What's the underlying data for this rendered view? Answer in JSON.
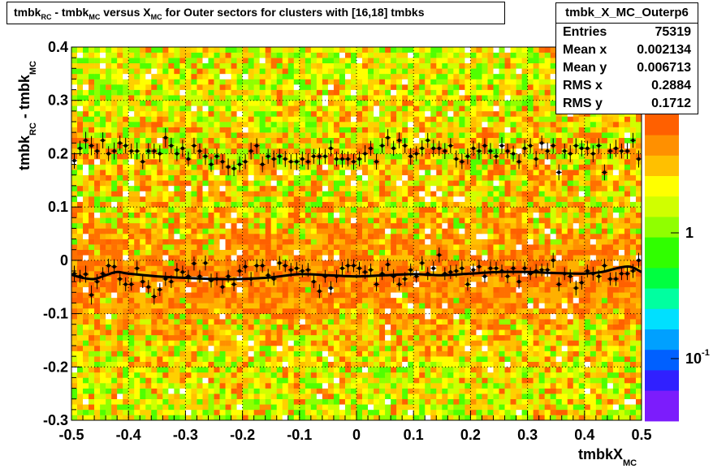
{
  "title": {
    "parts": [
      "tmbk",
      "RC",
      " - tmbk",
      "MC",
      " versus X",
      "MC",
      " for Outer sectors for clusters with [16,18] tmbks"
    ]
  },
  "stats": {
    "name": "tmbk_X_MC_Outerp6",
    "rows": [
      {
        "label": "Entries",
        "value": "75319"
      },
      {
        "label": "Mean x",
        "value": "0.002134"
      },
      {
        "label": "Mean y",
        "value": "0.006713"
      },
      {
        "label": "RMS x",
        "value": "0.2884"
      },
      {
        "label": "RMS y",
        "value": "0.1712"
      }
    ]
  },
  "chart_data": {
    "type": "heatmap",
    "xlabel": "tmbkX",
    "xlabel_sub": "MC",
    "ylabel_parts": [
      "tmbk",
      "RC",
      " - tmbk",
      "MC"
    ],
    "xlim": [
      -0.5,
      0.5
    ],
    "ylim": [
      -0.3,
      0.4
    ],
    "x_ticks": [
      "-0.5",
      "-0.4",
      "-0.3",
      "-0.2",
      "-0.1",
      "0",
      "0.1",
      "0.2",
      "0.3",
      "0.4",
      "0.5"
    ],
    "y_ticks": [
      "-0.3",
      "-0.2",
      "-0.1",
      "0",
      "0.1",
      "0.2",
      "0.3",
      "0.4"
    ],
    "z_scale": "log",
    "z_tick_labels": [
      {
        "base": "1",
        "exp": ""
      },
      {
        "base": "10",
        "exp": "-1"
      }
    ],
    "grid": true,
    "palette": [
      "#7c1cfc",
      "#3020ff",
      "#0060ff",
      "#00a0ff",
      "#00e0ff",
      "#00ffa0",
      "#00ff40",
      "#30ff00",
      "#90ff00",
      "#d0ff00",
      "#ffff00",
      "#ffc000",
      "#ff9000",
      "#ff6000"
    ],
    "profile_lower": {
      "x": [
        -0.495,
        -0.485,
        -0.475,
        -0.465,
        -0.455,
        -0.445,
        -0.435,
        -0.425,
        -0.415,
        -0.405,
        -0.395,
        -0.385,
        -0.375,
        -0.365,
        -0.355,
        -0.345,
        -0.335,
        -0.325,
        -0.315,
        -0.305,
        -0.295,
        -0.285,
        -0.275,
        -0.265,
        -0.255,
        -0.245,
        -0.235,
        -0.225,
        -0.215,
        -0.205,
        -0.195,
        -0.185,
        -0.175,
        -0.165,
        -0.155,
        -0.145,
        -0.135,
        -0.125,
        -0.115,
        -0.105,
        -0.095,
        -0.085,
        -0.075,
        -0.065,
        -0.055,
        -0.045,
        -0.035,
        -0.025,
        -0.015,
        -0.005,
        0.005,
        0.015,
        0.025,
        0.035,
        0.045,
        0.055,
        0.065,
        0.075,
        0.085,
        0.095,
        0.105,
        0.115,
        0.125,
        0.135,
        0.145,
        0.155,
        0.165,
        0.175,
        0.185,
        0.195,
        0.205,
        0.215,
        0.225,
        0.235,
        0.245,
        0.255,
        0.265,
        0.275,
        0.285,
        0.295,
        0.305,
        0.315,
        0.325,
        0.335,
        0.345,
        0.355,
        0.365,
        0.375,
        0.385,
        0.395,
        0.405,
        0.415,
        0.425,
        0.435,
        0.445,
        0.455,
        0.465,
        0.475,
        0.485,
        0.495
      ],
      "y": [
        -0.025,
        -0.03,
        -0.026,
        -0.065,
        -0.04,
        -0.025,
        -0.01,
        -0.012,
        -0.035,
        -0.045,
        -0.045,
        -0.015,
        -0.04,
        -0.05,
        -0.068,
        -0.055,
        -0.035,
        -0.04,
        -0.018,
        -0.022,
        -0.03,
        -0.006,
        -0.03,
        -0.005,
        -0.038,
        -0.035,
        -0.05,
        -0.03,
        -0.045,
        -0.02,
        -0.012,
        -0.035,
        -0.01,
        -0.01,
        -0.028,
        -0.035,
        -0.005,
        -0.01,
        -0.018,
        -0.015,
        -0.02,
        -0.018,
        -0.04,
        -0.058,
        -0.03,
        -0.052,
        -0.03,
        -0.015,
        -0.01,
        -0.01,
        -0.015,
        -0.022,
        -0.018,
        -0.045,
        -0.025,
        -0.008,
        -0.03,
        -0.045,
        -0.035,
        -0.018,
        -0.03,
        -0.005,
        -0.025,
        -0.015,
        0.01,
        -0.025,
        -0.022,
        -0.02,
        -0.015,
        -0.045,
        -0.018,
        -0.012,
        -0.03,
        -0.015,
        -0.015,
        -0.02,
        -0.03,
        -0.015,
        -0.04,
        -0.015,
        -0.025,
        -0.02,
        -0.018,
        -0.018,
        0.0,
        -0.045,
        -0.025,
        -0.03,
        -0.052,
        -0.042,
        -0.02,
        -0.025,
        -0.03,
        -0.01,
        -0.035,
        -0.035,
        -0.025,
        -0.025,
        -0.02,
        0.0
      ],
      "err": [
        0.015,
        0.012,
        0.016,
        0.018,
        0.014,
        0.012,
        0.013,
        0.014,
        0.012,
        0.013,
        0.012,
        0.013,
        0.012,
        0.013,
        0.015,
        0.012,
        0.013,
        0.012,
        0.013,
        0.012,
        0.012,
        0.013,
        0.012,
        0.014,
        0.013,
        0.012,
        0.013,
        0.012,
        0.013,
        0.012,
        0.012,
        0.013,
        0.012,
        0.013,
        0.012,
        0.012,
        0.013,
        0.012,
        0.013,
        0.012,
        0.012,
        0.013,
        0.012,
        0.013,
        0.012,
        0.013,
        0.012,
        0.012,
        0.013,
        0.012,
        0.012,
        0.013,
        0.012,
        0.013,
        0.012,
        0.012,
        0.013,
        0.012,
        0.013,
        0.012,
        0.012,
        0.013,
        0.012,
        0.013,
        0.014,
        0.012,
        0.013,
        0.012,
        0.013,
        0.012,
        0.012,
        0.013,
        0.012,
        0.013,
        0.012,
        0.012,
        0.013,
        0.012,
        0.013,
        0.012,
        0.012,
        0.013,
        0.012,
        0.013,
        0.014,
        0.013,
        0.012,
        0.013,
        0.014,
        0.013,
        0.012,
        0.013,
        0.012,
        0.013,
        0.012,
        0.013,
        0.012,
        0.012,
        0.013,
        0.014
      ]
    },
    "profile_upper": {
      "x": [
        -0.495,
        -0.485,
        -0.475,
        -0.465,
        -0.455,
        -0.445,
        -0.435,
        -0.425,
        -0.415,
        -0.405,
        -0.395,
        -0.385,
        -0.375,
        -0.365,
        -0.355,
        -0.345,
        -0.335,
        -0.325,
        -0.315,
        -0.305,
        -0.295,
        -0.285,
        -0.275,
        -0.265,
        -0.255,
        -0.245,
        -0.235,
        -0.225,
        -0.215,
        -0.205,
        -0.195,
        -0.185,
        -0.175,
        -0.165,
        -0.155,
        -0.145,
        -0.135,
        -0.125,
        -0.115,
        -0.105,
        -0.095,
        -0.085,
        -0.075,
        -0.065,
        -0.055,
        -0.045,
        -0.035,
        -0.025,
        -0.015,
        -0.005,
        0.005,
        0.015,
        0.025,
        0.035,
        0.045,
        0.055,
        0.065,
        0.075,
        0.085,
        0.095,
        0.105,
        0.115,
        0.125,
        0.135,
        0.145,
        0.155,
        0.165,
        0.175,
        0.185,
        0.195,
        0.205,
        0.215,
        0.225,
        0.235,
        0.245,
        0.255,
        0.265,
        0.275,
        0.285,
        0.295,
        0.305,
        0.315,
        0.325,
        0.335,
        0.345,
        0.355,
        0.365,
        0.375,
        0.385,
        0.395,
        0.405,
        0.415,
        0.425,
        0.435,
        0.445,
        0.455,
        0.465,
        0.475,
        0.485,
        0.495
      ],
      "y": [
        0.187,
        0.21,
        0.225,
        0.215,
        0.205,
        0.225,
        0.2,
        0.205,
        0.22,
        0.215,
        0.205,
        0.205,
        0.185,
        0.205,
        0.205,
        0.2,
        0.23,
        0.215,
        0.2,
        0.21,
        0.19,
        0.215,
        0.205,
        0.195,
        0.18,
        0.195,
        0.185,
        0.175,
        0.172,
        0.18,
        0.185,
        0.205,
        0.215,
        0.18,
        0.195,
        0.19,
        0.195,
        0.19,
        0.185,
        0.185,
        0.19,
        0.185,
        0.195,
        0.195,
        0.195,
        0.21,
        0.19,
        0.19,
        0.19,
        0.185,
        0.19,
        0.2,
        0.21,
        0.185,
        0.215,
        0.23,
        0.21,
        0.225,
        0.215,
        0.195,
        0.2,
        0.21,
        0.225,
        0.21,
        0.21,
        0.205,
        0.215,
        0.19,
        0.185,
        0.195,
        0.21,
        0.205,
        0.215,
        0.205,
        0.195,
        0.215,
        0.205,
        0.2,
        0.185,
        0.21,
        0.215,
        0.19,
        0.22,
        0.205,
        0.215,
        0.165,
        0.205,
        0.2,
        0.215,
        0.21,
        0.21,
        0.2,
        0.215,
        0.165,
        0.205,
        0.21,
        0.205,
        0.205,
        0.225,
        0.19
      ],
      "err": [
        0.015,
        0.014,
        0.016,
        0.018,
        0.014,
        0.015,
        0.014,
        0.016,
        0.014,
        0.015,
        0.014,
        0.016,
        0.014,
        0.015,
        0.014,
        0.016,
        0.018,
        0.015,
        0.014,
        0.016,
        0.014,
        0.015,
        0.014,
        0.016,
        0.014,
        0.015,
        0.014,
        0.016,
        0.014,
        0.015,
        0.014,
        0.016,
        0.014,
        0.015,
        0.014,
        0.016,
        0.014,
        0.015,
        0.014,
        0.016,
        0.014,
        0.015,
        0.014,
        0.016,
        0.014,
        0.015,
        0.014,
        0.016,
        0.014,
        0.015,
        0.014,
        0.016,
        0.014,
        0.015,
        0.014,
        0.016,
        0.014,
        0.015,
        0.014,
        0.016,
        0.014,
        0.015,
        0.014,
        0.016,
        0.014,
        0.015,
        0.014,
        0.016,
        0.014,
        0.015,
        0.014,
        0.016,
        0.014,
        0.015,
        0.014,
        0.016,
        0.014,
        0.015,
        0.014,
        0.016,
        0.014,
        0.015,
        0.014,
        0.016,
        0.014,
        0.015,
        0.014,
        0.016,
        0.014,
        0.015,
        0.014,
        0.016,
        0.014,
        0.015,
        0.014,
        0.016,
        0.014,
        0.015,
        0.014,
        0.016
      ]
    },
    "fit_curve": {
      "x": [
        -0.5,
        -0.48,
        -0.46,
        -0.44,
        -0.42,
        -0.4,
        -0.35,
        -0.3,
        -0.25,
        -0.2,
        -0.15,
        -0.1,
        -0.05,
        0.0,
        0.05,
        0.1,
        0.15,
        0.2,
        0.25,
        0.3,
        0.35,
        0.4,
        0.43,
        0.46,
        0.48,
        0.5
      ],
      "y": [
        -0.027,
        -0.033,
        -0.035,
        -0.028,
        -0.022,
        -0.025,
        -0.03,
        -0.033,
        -0.035,
        -0.035,
        -0.032,
        -0.026,
        -0.028,
        -0.03,
        -0.028,
        -0.026,
        -0.028,
        -0.025,
        -0.022,
        -0.022,
        -0.024,
        -0.025,
        -0.022,
        -0.014,
        -0.012,
        -0.022
      ]
    }
  }
}
